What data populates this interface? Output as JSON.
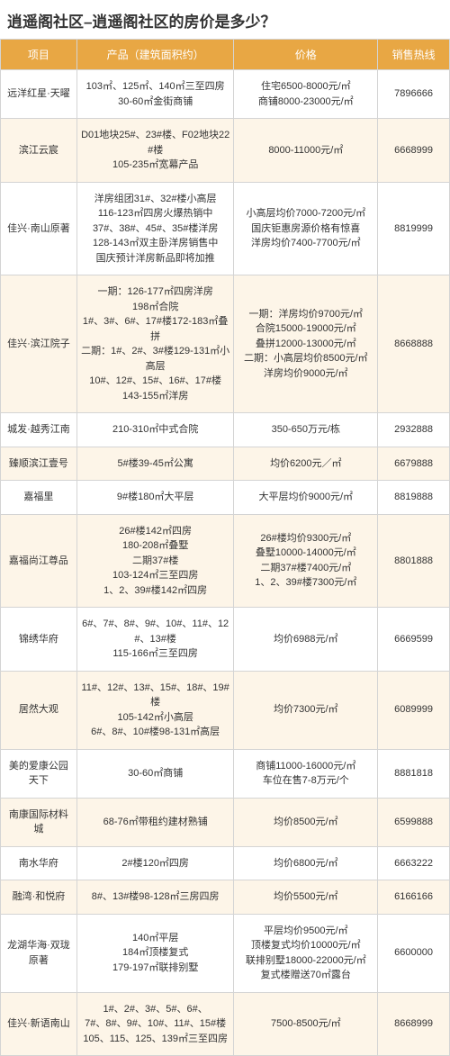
{
  "title": "逍遥阁社区–逍遥阁社区的房价是多少？",
  "columns": [
    "项目",
    "产品（建筑面积约）",
    "价格",
    "销售热线"
  ],
  "header_bg": "#e8a744",
  "header_color": "#ffffff",
  "row_alt_bg": "#fdf5e8",
  "border_color": "#d4d4d4",
  "rows": [
    {
      "project": "远洋红星·天曜",
      "product": "103㎡、125㎡、140㎡三至四房\n30-60㎡金街商铺",
      "price": "住宅6500-8000元/㎡\n商铺8000-23000元/㎡",
      "phone": "7896666"
    },
    {
      "project": "滨江云宸",
      "product": "D01地块25#、23#楼、F02地块22#楼\n105-235㎡宽幕产品",
      "price": "8000-11000元/㎡",
      "phone": "6668999"
    },
    {
      "project": "佳兴·南山原著",
      "product": "洋房组团31#、32#楼小高层\n116-123㎡四房火爆热销中\n37#、38#、45#、35#楼洋房\n128-143㎡双主卧洋房销售中\n国庆预计洋房新品即将加推",
      "price": "小高层均价7000-7200元/㎡\n国庆钜惠房源价格有惊喜\n洋房均价7400-7700元/㎡",
      "phone": "8819999"
    },
    {
      "project": "佳兴·滨江院子",
      "product": "一期：126-177㎡四房洋房\n198㎡合院\n1#、3#、6#、17#楼172-183㎡叠拼\n二期：1#、2#、3#楼129-131㎡小高层\n10#、12#、15#、16#、17#楼\n143-155㎡洋房",
      "price": "一期：洋房均价9700元/㎡\n合院15000-19000元/㎡\n叠拼12000-13000元/㎡\n二期：小高层均价8500元/㎡\n洋房均价9000元/㎡",
      "phone": "8668888"
    },
    {
      "project": "城发·越秀江南",
      "product": "210-310㎡中式合院",
      "price": "350-650万元/栋",
      "phone": "2932888"
    },
    {
      "project": "臻顺滨江壹号",
      "product": "5#楼39-45㎡公寓",
      "price": "均价6200元／㎡",
      "phone": "6679888"
    },
    {
      "project": "嘉福里",
      "product": "9#楼180㎡大平层",
      "price": "大平层均价9000元/㎡",
      "phone": "8819888"
    },
    {
      "project": "嘉福尚江尊品",
      "product": "26#楼142㎡四房\n180-208㎡叠墅\n二期37#楼\n103-124㎡三至四房\n1、2、39#楼142㎡四房",
      "price": "26#楼均价9300元/㎡\n叠墅10000-14000元/㎡\n二期37#楼7400元/㎡\n1、2、39#楼7300元/㎡",
      "phone": "8801888"
    },
    {
      "project": "锦绣华府",
      "product": "6#、7#、8#、9#、10#、11#、12#、13#楼\n115-166㎡三至四房",
      "price": "均价6988元/㎡",
      "phone": "6669599"
    },
    {
      "project": "居然大观",
      "product": "11#、12#、13#、15#、18#、19#楼\n105-142㎡小高层\n6#、8#、10#楼98-131㎡高层",
      "price": "均价7300元/㎡",
      "phone": "6089999"
    },
    {
      "project": "美的爱康公园天下",
      "product": "30-60㎡商铺",
      "price": "商铺11000-16000元/㎡\n车位在售7-8万元/个",
      "phone": "8881818"
    },
    {
      "project": "南康国际材料城",
      "product": "68-76㎡带租约建材熟铺",
      "price": "均价8500元/㎡",
      "phone": "6599888"
    },
    {
      "project": "南水华府",
      "product": "2#楼120㎡四房",
      "price": "均价6800元/㎡",
      "phone": "6663222"
    },
    {
      "project": "融湾·和悦府",
      "product": "8#、13#楼98-128㎡三房四房",
      "price": "均价5500元/㎡",
      "phone": "6166166"
    },
    {
      "project": "龙湖华海·双珑原著",
      "product": "140㎡平层\n184㎡顶楼复式\n179-197㎡联排别墅",
      "price": "平层均价9500元/㎡\n顶楼复式均价10000元/㎡\n联排别墅18000-22000元/㎡\n复式楼赠送70㎡露台",
      "phone": "6600000"
    },
    {
      "project": "佳兴·新语南山",
      "product": "1#、2#、3#、5#、6#、\n7#、8#、9#、10#、11#、15#楼\n105、115、125、139㎡三至四房",
      "price": "7500-8500元/㎡",
      "phone": "8668999"
    }
  ]
}
